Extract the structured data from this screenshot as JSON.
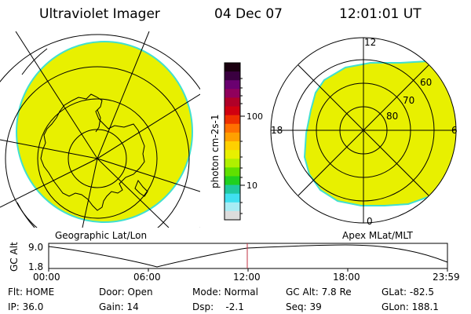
{
  "header": {
    "instrument": "Ultraviolet Imager",
    "date": "04 Dec 07",
    "time": "12:01:01 UT"
  },
  "left_panel": {
    "caption": "Geographic Lat/Lon",
    "fill_color": "#e8f000",
    "edge_color": "#40e0d0"
  },
  "right_panel": {
    "caption": "Apex MLat/MLT",
    "mlt_labels": {
      "top": "12",
      "left": "18",
      "right": "6",
      "bottom": "0"
    },
    "lat_labels": [
      "60",
      "70",
      "80"
    ]
  },
  "colorbar": {
    "unit_label": "photon cm-2s-1",
    "tick_labels": [
      "100",
      "10"
    ],
    "colors": [
      "#1a0010",
      "#3a0040",
      "#6a0070",
      "#90005c",
      "#b00028",
      "#d00010",
      "#ee3000",
      "#ff7000",
      "#ffa000",
      "#ffd000",
      "#e8f000",
      "#b0f000",
      "#60e000",
      "#20d020",
      "#20c8a0",
      "#40e0f0",
      "#a8ecf4",
      "#dcdcdc"
    ]
  },
  "timeline": {
    "ylabel": "GC Alt",
    "y_top": "9.0",
    "y_bottom": "1.8",
    "x_labels": [
      "00:00",
      "06:00",
      "12:00",
      "18:00",
      "23:59"
    ],
    "marker_color": "#c03040"
  },
  "status": {
    "row1": {
      "flt": "Flt: HOME",
      "door": "Door: Open",
      "mode": "Mode: Normal",
      "gcalt": "GC Alt: 7.8 Re",
      "glat": "GLat: -82.5"
    },
    "row2": {
      "ip": "IP: 36.0",
      "gain": "Gain: 14",
      "dsp": "Dsp:    -2.1",
      "seq": "Seq: 39",
      "glon": "GLon: 188.1"
    }
  }
}
